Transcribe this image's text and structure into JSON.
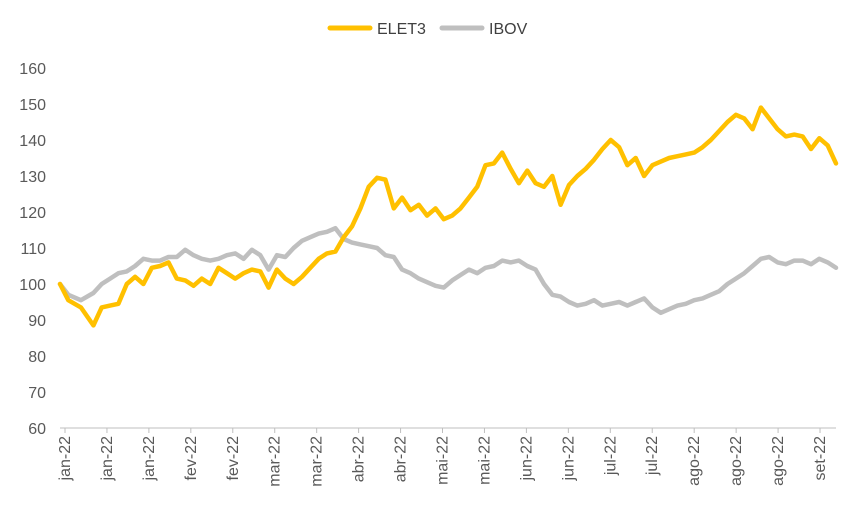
{
  "chart_data": {
    "type": "line",
    "title": "",
    "xlabel": "",
    "ylabel": "",
    "ylim": [
      60,
      160
    ],
    "yticks": [
      60,
      70,
      80,
      90,
      100,
      110,
      120,
      130,
      140,
      150,
      160
    ],
    "grid": false,
    "legend_position": "top-center",
    "x_tick_labels": [
      "jan-22",
      "jan-22",
      "jan-22",
      "fev-22",
      "fev-22",
      "mar-22",
      "mar-22",
      "abr-22",
      "abr-22",
      "mai-22",
      "mai-22",
      "jun-22",
      "jun-22",
      "jul-22",
      "jul-22",
      "ago-22",
      "ago-22",
      "ago-22",
      "set-22"
    ],
    "x_range": [
      0,
      186
    ],
    "x": [
      0,
      2,
      5,
      8,
      10,
      12,
      14,
      16,
      18,
      20,
      22,
      24,
      26,
      28,
      30,
      32,
      34,
      36,
      38,
      40,
      42,
      44,
      46,
      48,
      50,
      52,
      54,
      56,
      58,
      60,
      62,
      64,
      66,
      68,
      70,
      72,
      74,
      76,
      78,
      80,
      82,
      84,
      86,
      88,
      90,
      92,
      94,
      96,
      98,
      100,
      102,
      104,
      106,
      108,
      110,
      112,
      114,
      116,
      118,
      120,
      122,
      124,
      126,
      128,
      130,
      132,
      134,
      136,
      138,
      140,
      142,
      144,
      146,
      148,
      150,
      152,
      154,
      156,
      158,
      160,
      162,
      164,
      166,
      168,
      170,
      172,
      174,
      176,
      178,
      180,
      182,
      184,
      186
    ],
    "series": [
      {
        "name": "ELET3",
        "color": "#FFC000",
        "values": [
          100,
          95.5,
          93.5,
          88.5,
          93.5,
          94,
          94.5,
          100,
          102,
          100,
          104.5,
          105,
          106,
          101.5,
          101,
          99.5,
          101.5,
          100,
          104.5,
          103,
          101.5,
          103,
          104,
          103.5,
          99,
          104,
          101.5,
          100,
          102,
          104.5,
          107,
          108.5,
          109,
          113,
          116,
          121,
          127,
          129.5,
          129,
          121,
          124,
          120.5,
          122,
          119,
          121,
          118,
          119,
          121,
          124,
          127,
          133,
          133.5,
          136.5,
          132,
          128,
          131.5,
          128,
          127,
          130,
          122,
          127.5,
          130,
          132,
          134.5,
          137.5,
          140,
          138,
          133,
          135,
          130,
          133,
          134,
          135,
          135.5,
          136,
          136.5,
          138,
          140,
          142.5,
          145,
          147,
          146,
          143,
          149,
          146,
          143,
          141,
          141.5,
          141,
          137.5,
          140.5,
          138.5,
          133.5
        ]
      },
      {
        "name": "IBOV",
        "color": "#BFBFBF",
        "values": [
          100,
          97,
          95.5,
          97.5,
          100,
          101.5,
          103,
          103.5,
          105,
          107,
          106.5,
          106.5,
          107.5,
          107.5,
          109.5,
          108,
          107,
          106.5,
          107,
          108,
          108.5,
          107,
          109.5,
          108,
          104,
          108,
          107.5,
          110,
          112,
          113,
          114,
          114.5,
          115.5,
          112.5,
          111.5,
          111,
          110.5,
          110,
          108,
          107.5,
          104,
          103,
          101.5,
          100.5,
          99.5,
          99,
          101,
          102.5,
          104,
          103,
          104.5,
          105,
          106.5,
          106,
          106.5,
          105,
          104,
          100,
          97,
          96.5,
          95,
          94,
          94.5,
          95.5,
          94,
          94.5,
          95,
          94,
          95,
          96,
          93.5,
          92,
          93,
          94,
          94.5,
          95.5,
          96,
          97,
          98,
          100,
          101.5,
          103,
          105,
          107,
          107.5,
          106,
          105.5,
          106.5,
          106.5,
          105.5,
          107,
          106,
          104.5
        ]
      }
    ]
  }
}
